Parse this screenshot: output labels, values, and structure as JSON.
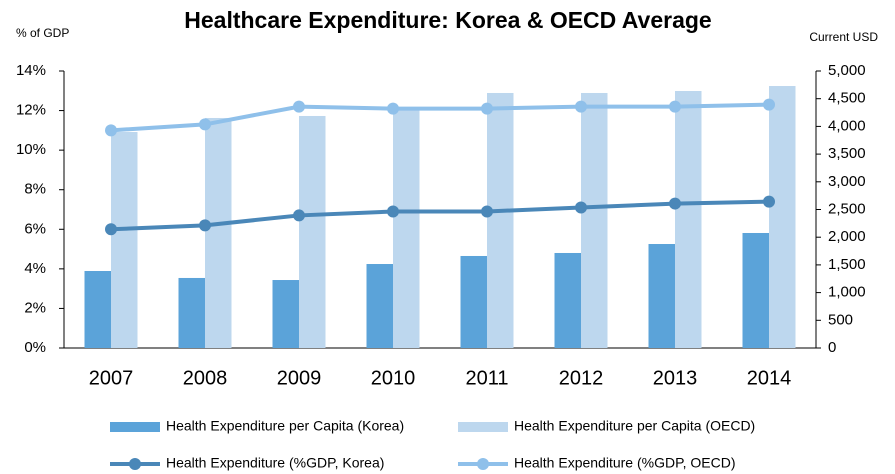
{
  "chart_data": {
    "type": "combo",
    "title": "Healthcare Expenditure: Korea & OECD Average",
    "y_label": "% of GDP",
    "y2_label": "Current USD",
    "categories": [
      "2007",
      "2008",
      "2009",
      "2010",
      "2011",
      "2012",
      "2013",
      "2014"
    ],
    "series": [
      {
        "name": "Health Expenditure per Capita (Korea)",
        "type": "bar",
        "axis": "y2",
        "color": "#5ba3d9",
        "values": [
          1390,
          1264,
          1227,
          1516,
          1661,
          1715,
          1877,
          2076
        ]
      },
      {
        "name": "Health Expenditure per Capita (OECD)",
        "type": "bar",
        "axis": "y2",
        "color": "#bdd7ee",
        "values": [
          3899,
          4152,
          4188,
          4296,
          4603,
          4603,
          4639,
          4729
        ]
      },
      {
        "name": "Health Expenditure (%GDP, Korea)",
        "type": "line",
        "axis": "y",
        "color": "#4a87b8",
        "values": [
          6.0,
          6.2,
          6.7,
          6.9,
          6.9,
          7.1,
          7.3,
          7.4
        ]
      },
      {
        "name": "Health Expenditure (%GDP, OECD)",
        "type": "line",
        "axis": "y",
        "color": "#8fc0ea",
        "values": [
          11.0,
          11.3,
          12.2,
          12.1,
          12.1,
          12.2,
          12.2,
          12.3
        ]
      }
    ],
    "ylim": [
      0,
      14
    ],
    "yticks": [
      {
        "value": 0,
        "label": "0%"
      },
      {
        "value": 2,
        "label": "2%"
      },
      {
        "value": 4,
        "label": "4%"
      },
      {
        "value": 6,
        "label": "6%"
      },
      {
        "value": 8,
        "label": "8%"
      },
      {
        "value": 10,
        "label": "10%"
      },
      {
        "value": 12,
        "label": "12%"
      },
      {
        "value": 14,
        "label": "14%"
      }
    ],
    "y2lim": [
      0,
      5000
    ],
    "y2ticks": [
      0,
      500,
      {
        "value": 1000,
        "label": "1,000"
      },
      {
        "value": 1500,
        "label": "1,500"
      },
      {
        "value": 2000,
        "label": "2,000"
      },
      {
        "value": 2500,
        "label": "2,500"
      },
      {
        "value": 3000,
        "label": "3,000"
      },
      {
        "value": 3500,
        "label": "3,500"
      },
      {
        "value": 4000,
        "label": "4,000"
      },
      {
        "value": 4500,
        "label": "4,500"
      },
      {
        "value": 5000,
        "label": "5,000"
      }
    ],
    "legend": "bottom"
  }
}
